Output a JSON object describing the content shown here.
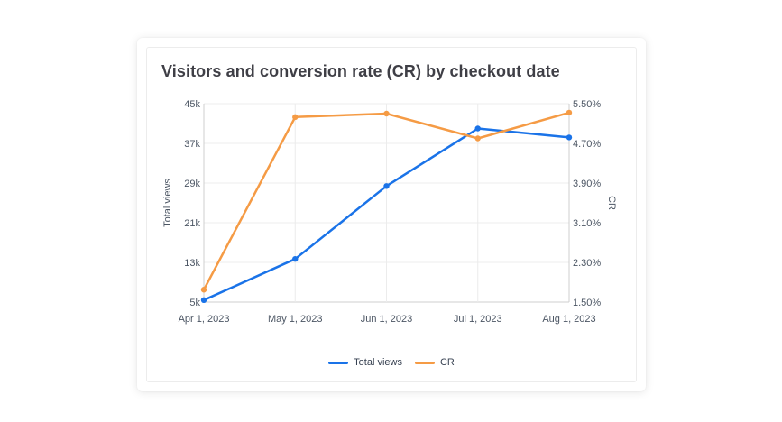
{
  "card": {
    "title": "Visitors and conversion rate (CR) by checkout date"
  },
  "colors": {
    "total_views": "#1a73e8",
    "cr": "#f59b45",
    "grid": "#ececec",
    "axis": "#cfcfcf"
  },
  "chart_data": {
    "type": "line",
    "x": [
      "Apr 1, 2023",
      "May 1, 2023",
      "Jun 1, 2023",
      "Jul 1, 2023",
      "Aug 1, 2023"
    ],
    "series": [
      {
        "name": "Total views",
        "axis": "left",
        "values": [
          5400,
          13700,
          28400,
          40000,
          38200
        ]
      },
      {
        "name": "CR",
        "axis": "right",
        "values": [
          1.75,
          5.23,
          5.3,
          4.8,
          5.32
        ]
      }
    ],
    "y_left": {
      "label": "Total views",
      "range": [
        5000,
        45000
      ],
      "ticks": [
        5000,
        13000,
        21000,
        29000,
        37000,
        45000
      ],
      "tick_labels": [
        "5k",
        "13k",
        "21k",
        "29k",
        "37k",
        "45k"
      ]
    },
    "y_right": {
      "label": "CR",
      "range": [
        1.5,
        5.5
      ],
      "ticks": [
        1.5,
        2.3,
        3.1,
        3.9,
        4.7,
        5.5
      ],
      "tick_labels": [
        "1.50%",
        "2.30%",
        "3.10%",
        "3.90%",
        "4.70%",
        "5.50%"
      ]
    },
    "grid": true,
    "legend": "bottom-center"
  }
}
